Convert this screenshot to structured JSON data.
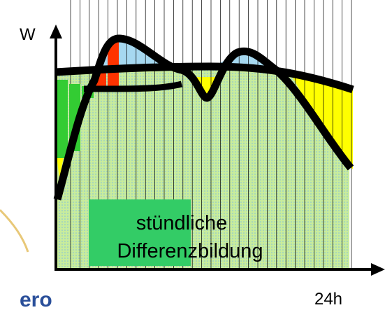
{
  "labels": {
    "y_axis": "W",
    "x_axis": "24h",
    "box_line1": "stündliche",
    "box_line2": "Differenzbildung",
    "logo": "ero"
  }
}
